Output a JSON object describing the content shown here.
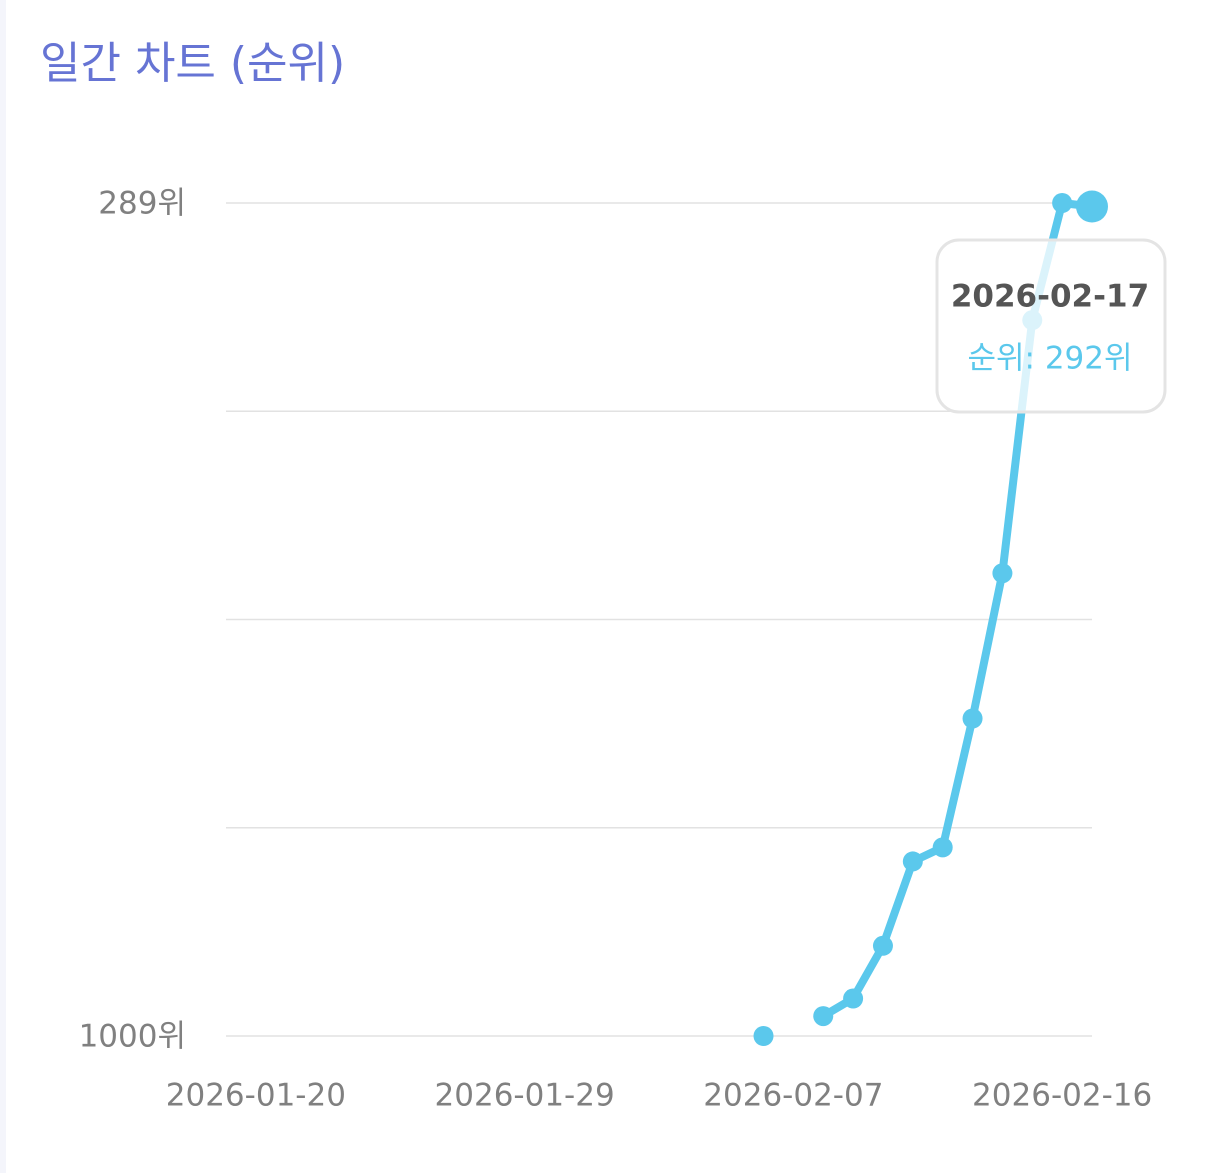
{
  "chart_data": {
    "type": "line",
    "title": "일간 차트 (순위)",
    "x": [
      "2026-02-06",
      "2026-02-07",
      "2026-02-08",
      "2026-02-09",
      "2026-02-10",
      "2026-02-11",
      "2026-02-12",
      "2026-02-13",
      "2026-02-14",
      "2026-02-15",
      "2026-02-16",
      "2026-02-17"
    ],
    "series": [
      {
        "name": "순위",
        "color": "#5bc8ec",
        "values": [
          1000,
          null,
          983,
          968,
          923,
          851,
          839,
          729,
          605,
          389,
          289,
          292
        ]
      }
    ],
    "xlim": [
      "2026-01-19",
      "2026-02-17"
    ],
    "xticks": [
      "2026-01-20",
      "2026-01-29",
      "2026-02-07",
      "2026-02-16"
    ],
    "ylim": [
      1000,
      289
    ],
    "y_reversed": true,
    "yticks": [
      {
        "value": 289,
        "label": "289위"
      },
      {
        "value": 466.75,
        "label": null
      },
      {
        "value": 644.5,
        "label": null
      },
      {
        "value": 822.25,
        "label": null
      },
      {
        "value": 1000,
        "label": "1000위"
      }
    ],
    "grid": true,
    "tooltip": {
      "title": "2026-02-17",
      "text": "순위: 292위"
    }
  }
}
